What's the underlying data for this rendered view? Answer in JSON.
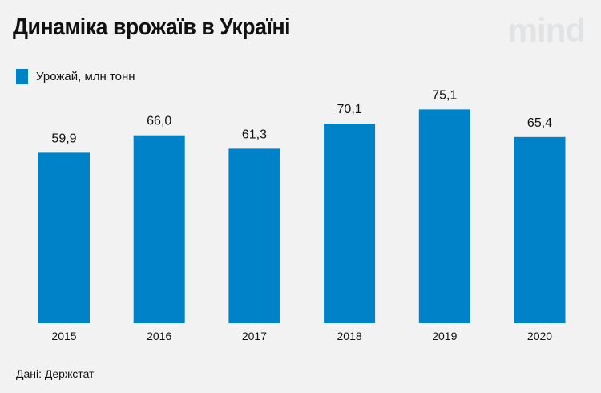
{
  "header": {
    "title": "Динаміка врожаїв в Україні",
    "logo": "mind"
  },
  "footer": {
    "source": "Дані: Держстат"
  },
  "colors": {
    "bar": "#0082c8",
    "background": "#f2f2f2"
  },
  "chart_data": {
    "type": "bar",
    "title": "Динаміка врожаїв в Україні",
    "categories": [
      "2015",
      "2016",
      "2017",
      "2018",
      "2019",
      "2020"
    ],
    "series": [
      {
        "name": "Урожай, млн тонн",
        "values": [
          59.9,
          66.0,
          61.3,
          70.1,
          75.1,
          65.4
        ]
      }
    ],
    "data_labels": [
      "59,9",
      "66,0",
      "61,3",
      "70,1",
      "75,1",
      "65,4"
    ],
    "xlabel": "",
    "ylabel": "",
    "ylim": [
      0,
      80
    ],
    "grid": false,
    "legend": "top-left"
  }
}
